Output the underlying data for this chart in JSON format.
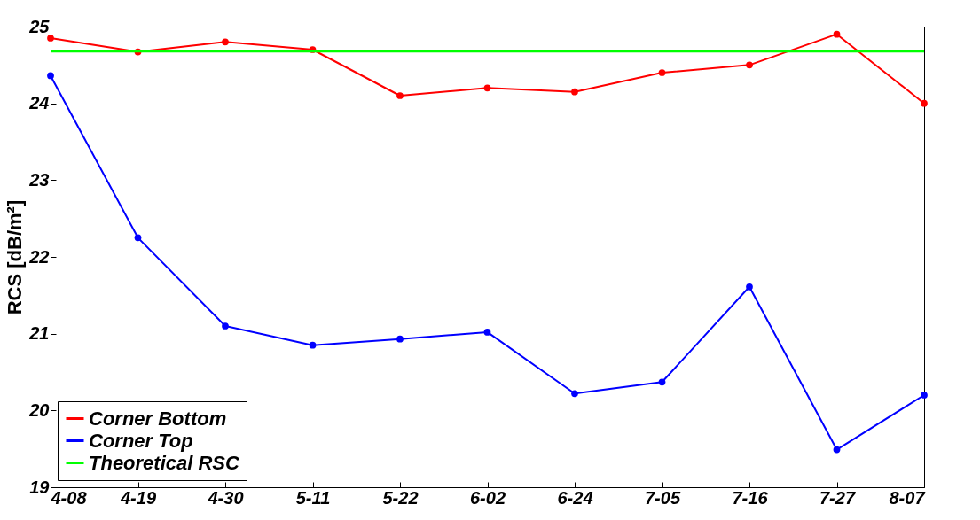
{
  "chart_data": {
    "type": "line",
    "ylabel": "RCS [dB/m²]",
    "categories": [
      "4-08",
      "4-19",
      "4-30",
      "5-11",
      "5-22",
      "6-02",
      "6-24",
      "7-05",
      "7-16",
      "7-27",
      "8-07"
    ],
    "series": [
      {
        "name": "Corner Bottom",
        "color": "#ff0000",
        "values": [
          24.85,
          24.67,
          24.8,
          24.7,
          24.1,
          24.2,
          24.15,
          24.4,
          24.5,
          24.9,
          24.0
        ]
      },
      {
        "name": "Corner Top",
        "color": "#0000ff",
        "values": [
          24.36,
          22.25,
          21.1,
          20.85,
          20.93,
          21.02,
          20.22,
          20.37,
          21.61,
          19.49,
          20.2
        ]
      }
    ],
    "ref_lines": [
      {
        "axis": "y",
        "value": 24.68,
        "label": "Theoretical RSC",
        "color": "#00ff00"
      }
    ],
    "ylim": [
      19,
      25
    ],
    "yticks": [
      19,
      20,
      21,
      22,
      23,
      24,
      25
    ],
    "grid": false,
    "legend": "bottom left",
    "marker": "circle",
    "line_style": "solid"
  }
}
